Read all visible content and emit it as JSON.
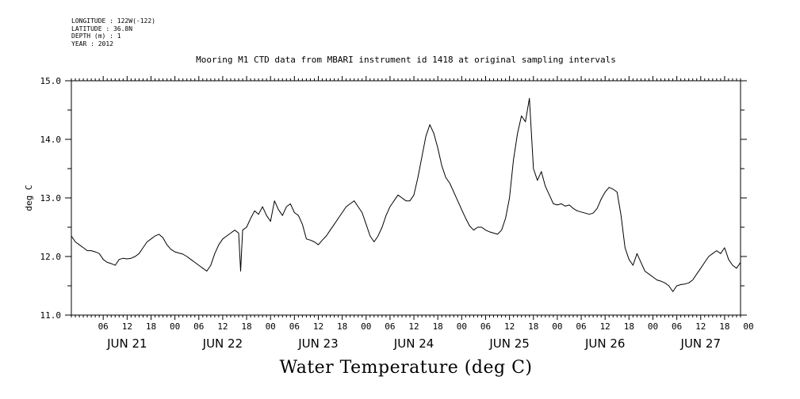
{
  "header": {
    "longitude": "LONGITUDE : 122W(-122)",
    "latitude": "LATITUDE : 36.8N",
    "depth": "DEPTH (m) : 1",
    "year": "YEAR : 2012"
  },
  "footer_title": "Water Temperature (deg C)",
  "chart_data": {
    "type": "line",
    "title": "Mooring M1 CTD data from MBARI instrument id 1418 at original sampling intervals",
    "xlabel": "",
    "ylabel": "deg C",
    "ylim": [
      11.0,
      15.0
    ],
    "y_ticks": [
      "11.0",
      "12.0",
      "13.0",
      "14.0",
      "15.0"
    ],
    "xlim_hours": [
      0,
      168
    ],
    "x_unit": "hours after JUN 20 22:00 (2012)",
    "hour_ticks": [
      "06",
      "12",
      "18",
      "00",
      "06",
      "12",
      "18",
      "00",
      "06",
      "12",
      "18",
      "00",
      "06",
      "12",
      "18",
      "00",
      "06",
      "12",
      "18",
      "00",
      "06",
      "12",
      "18",
      "00",
      "06",
      "12",
      "18",
      "00"
    ],
    "day_labels": [
      "JUN 21",
      "JUN 22",
      "JUN 23",
      "JUN 24",
      "JUN 25",
      "JUN 26",
      "JUN 27"
    ],
    "grid": false,
    "series": [
      {
        "name": "",
        "x": [
          0,
          1,
          2,
          3,
          4,
          5,
          6,
          7,
          8,
          9,
          10,
          11,
          12,
          13,
          14,
          15,
          16,
          17,
          18,
          19,
          20,
          21,
          22,
          23,
          24,
          25,
          26,
          27,
          28,
          29,
          30,
          31,
          32,
          33,
          34,
          35,
          36,
          37,
          38,
          39,
          40,
          41,
          42,
          42.5,
          43,
          44,
          45,
          46,
          47,
          48,
          49,
          50,
          51,
          52,
          53,
          54,
          55,
          56,
          57,
          58,
          59,
          60,
          61,
          62,
          63,
          64,
          65,
          66,
          67,
          68,
          69,
          70,
          71,
          72,
          73,
          74,
          75,
          76,
          77,
          78,
          79,
          80,
          81,
          82,
          83,
          84,
          85,
          86,
          87,
          88,
          89,
          90,
          91,
          92,
          93,
          94,
          95,
          96,
          97,
          98,
          99,
          100,
          101,
          102,
          103,
          104,
          105,
          106,
          107,
          108,
          109,
          110,
          111,
          112,
          113,
          114,
          115,
          116,
          117,
          118,
          119,
          120,
          121,
          122,
          123,
          124,
          125,
          126,
          127,
          128,
          129,
          130,
          131,
          132,
          133,
          134,
          135,
          136,
          137,
          138,
          139,
          140,
          141,
          142,
          143,
          144,
          145,
          146,
          147,
          148,
          149,
          150,
          151,
          152,
          153,
          154,
          155,
          156,
          157,
          158,
          159,
          160,
          161,
          162,
          163,
          164,
          165,
          166,
          167,
          168
        ],
        "y": [
          12.35,
          12.25,
          12.2,
          12.15,
          12.1,
          12.1,
          12.08,
          12.05,
          11.95,
          11.9,
          11.88,
          11.85,
          11.95,
          11.97,
          11.96,
          11.97,
          12.0,
          12.05,
          12.15,
          12.25,
          12.3,
          12.35,
          12.38,
          12.32,
          12.2,
          12.12,
          12.08,
          12.06,
          12.04,
          12.0,
          11.95,
          11.9,
          11.85,
          11.8,
          11.75,
          11.85,
          12.05,
          12.2,
          12.3,
          12.35,
          12.4,
          12.45,
          12.4,
          11.75,
          12.45,
          12.5,
          12.65,
          12.78,
          12.72,
          12.85,
          12.7,
          12.6,
          12.95,
          12.8,
          12.7,
          12.85,
          12.9,
          12.75,
          12.7,
          12.55,
          12.3,
          12.28,
          12.25,
          12.2,
          12.28,
          12.35,
          12.45,
          12.55,
          12.65,
          12.75,
          12.85,
          12.9,
          12.95,
          12.85,
          12.75,
          12.55,
          12.35,
          12.25,
          12.35,
          12.5,
          12.7,
          12.85,
          12.95,
          13.05,
          13.0,
          12.95,
          12.95,
          13.05,
          13.35,
          13.7,
          14.05,
          14.25,
          14.1,
          13.85,
          13.55,
          13.35,
          13.25,
          13.1,
          12.95,
          12.8,
          12.65,
          12.52,
          12.45,
          12.5,
          12.5,
          12.45,
          12.42,
          12.4,
          12.38,
          12.45,
          12.65,
          13.0,
          13.65,
          14.1,
          14.4,
          14.3,
          14.7,
          13.5,
          13.3,
          13.45,
          13.2,
          13.05,
          12.9,
          12.88,
          12.9,
          12.86,
          12.88,
          12.82,
          12.78,
          12.76,
          12.74,
          12.72,
          12.74,
          12.82,
          12.98,
          13.1,
          13.18,
          13.15,
          13.1,
          12.7,
          12.15,
          11.95,
          11.85,
          12.05,
          11.9,
          11.75,
          11.7,
          11.65,
          11.6,
          11.58,
          11.55,
          11.5,
          11.4,
          11.5,
          11.52,
          11.53,
          11.55,
          11.6,
          11.7,
          11.8,
          11.9,
          12.0,
          12.05,
          12.1,
          12.05,
          12.15,
          11.95,
          11.85,
          11.8,
          11.9
        ]
      }
    ]
  }
}
